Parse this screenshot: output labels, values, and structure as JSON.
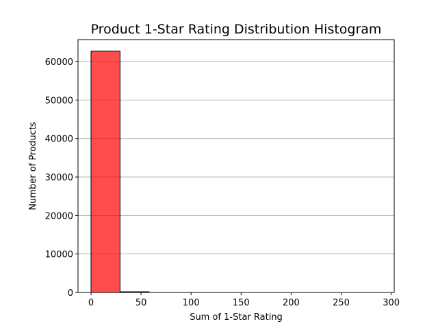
{
  "chart_data": {
    "type": "bar",
    "title": "Product 1-Star Rating Distribution Histogram",
    "xlabel": "Sum of 1-Star Rating",
    "ylabel": "Number of Products",
    "bin_edges": [
      0,
      29,
      58,
      87,
      116,
      145,
      174,
      203,
      232,
      261,
      290
    ],
    "values": [
      62700,
      180,
      8,
      3,
      2,
      1,
      1,
      0,
      0,
      1
    ],
    "xlim": [
      -13,
      303
    ],
    "ylim": [
      0,
      65700
    ],
    "xticks": [
      0,
      50,
      100,
      150,
      200,
      250,
      300
    ],
    "yticks": [
      0,
      10000,
      20000,
      30000,
      40000,
      50000,
      60000
    ],
    "grid": "y-axis only",
    "bar_color": "#ff0000",
    "bar_alpha": 0.7,
    "bar_edge_color": "#000000"
  }
}
